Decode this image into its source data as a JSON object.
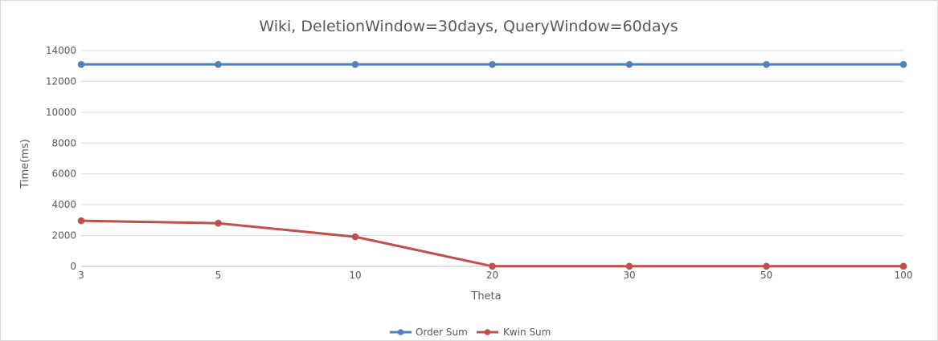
{
  "chart_data": {
    "type": "line",
    "title": "Wiki, DeletionWindow=30days, QueryWindow=60days",
    "xlabel": "Theta",
    "ylabel": "Time(ms)",
    "categories": [
      "3",
      "5",
      "10",
      "20",
      "30",
      "50",
      "100"
    ],
    "yticks": [
      "0",
      "2000",
      "4000",
      "6000",
      "8000",
      "10000",
      "12000",
      "14000"
    ],
    "ylim": [
      0,
      14000
    ],
    "grid": true,
    "legend_position": "bottom",
    "series": [
      {
        "name": "Order Sum",
        "color": "#4f81bd",
        "values": [
          13100,
          13100,
          13100,
          13100,
          13100,
          13100,
          13100
        ]
      },
      {
        "name": "Kwin Sum",
        "color": "#c0504d",
        "values": [
          2960,
          2800,
          1920,
          10,
          10,
          10,
          10
        ]
      }
    ]
  }
}
